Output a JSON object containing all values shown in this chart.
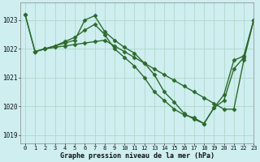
{
  "title": "Graphe pression niveau de la mer (hPa)",
  "bg_color": "#ceeef0",
  "grid_color": "#b0d8cc",
  "line_color": "#2d6a2d",
  "marker": "D",
  "markersize": 2.5,
  "linewidth": 1.0,
  "xlim": [
    -0.5,
    23
  ],
  "ylim": [
    1018.7,
    1023.6
  ],
  "yticks": [
    1019,
    1020,
    1021,
    1022,
    1023
  ],
  "xticks": [
    0,
    1,
    2,
    3,
    4,
    5,
    6,
    7,
    8,
    9,
    10,
    11,
    12,
    13,
    14,
    15,
    16,
    17,
    18,
    19,
    20,
    21,
    22,
    23
  ],
  "series": [
    {
      "x": [
        0,
        1,
        2,
        3,
        4,
        5,
        6,
        7,
        8,
        9,
        10,
        11,
        12,
        13,
        14,
        15,
        16,
        17,
        18,
        19,
        20,
        21,
        22,
        23
      ],
      "y": [
        1023.2,
        1021.9,
        1022.0,
        1022.1,
        1022.2,
        1022.3,
        1023.0,
        1023.15,
        1022.6,
        1022.3,
        1022.05,
        1021.85,
        1021.5,
        1021.1,
        1020.5,
        1020.15,
        1019.75,
        1019.55,
        1019.4,
        1019.95,
        1020.4,
        1021.6,
        1021.75,
        1023.0
      ]
    },
    {
      "x": [
        0,
        1,
        2,
        3,
        4,
        5,
        6,
        7,
        8,
        9,
        10,
        11,
        12,
        13,
        14,
        15,
        16,
        17,
        18,
        19,
        20,
        21,
        22,
        23
      ],
      "y": [
        1023.2,
        1021.9,
        1022.0,
        1022.05,
        1022.1,
        1022.15,
        1022.2,
        1022.25,
        1022.3,
        1022.1,
        1021.9,
        1021.7,
        1021.5,
        1021.3,
        1021.1,
        1020.9,
        1020.7,
        1020.5,
        1020.3,
        1020.1,
        1019.9,
        1019.9,
        1021.6,
        1023.0
      ]
    },
    {
      "x": [
        1,
        2,
        3,
        4,
        5,
        6,
        7,
        8,
        9,
        10,
        11,
        12,
        13,
        14,
        15,
        16,
        17,
        18,
        19,
        20,
        21,
        22,
        23
      ],
      "y": [
        1021.9,
        1022.0,
        1022.1,
        1022.25,
        1022.4,
        1022.65,
        1022.85,
        1022.5,
        1022.0,
        1021.7,
        1021.4,
        1021.0,
        1020.5,
        1020.2,
        1019.9,
        1019.7,
        1019.6,
        1019.4,
        1019.95,
        1020.2,
        1021.3,
        1021.7,
        1023.0
      ]
    }
  ]
}
